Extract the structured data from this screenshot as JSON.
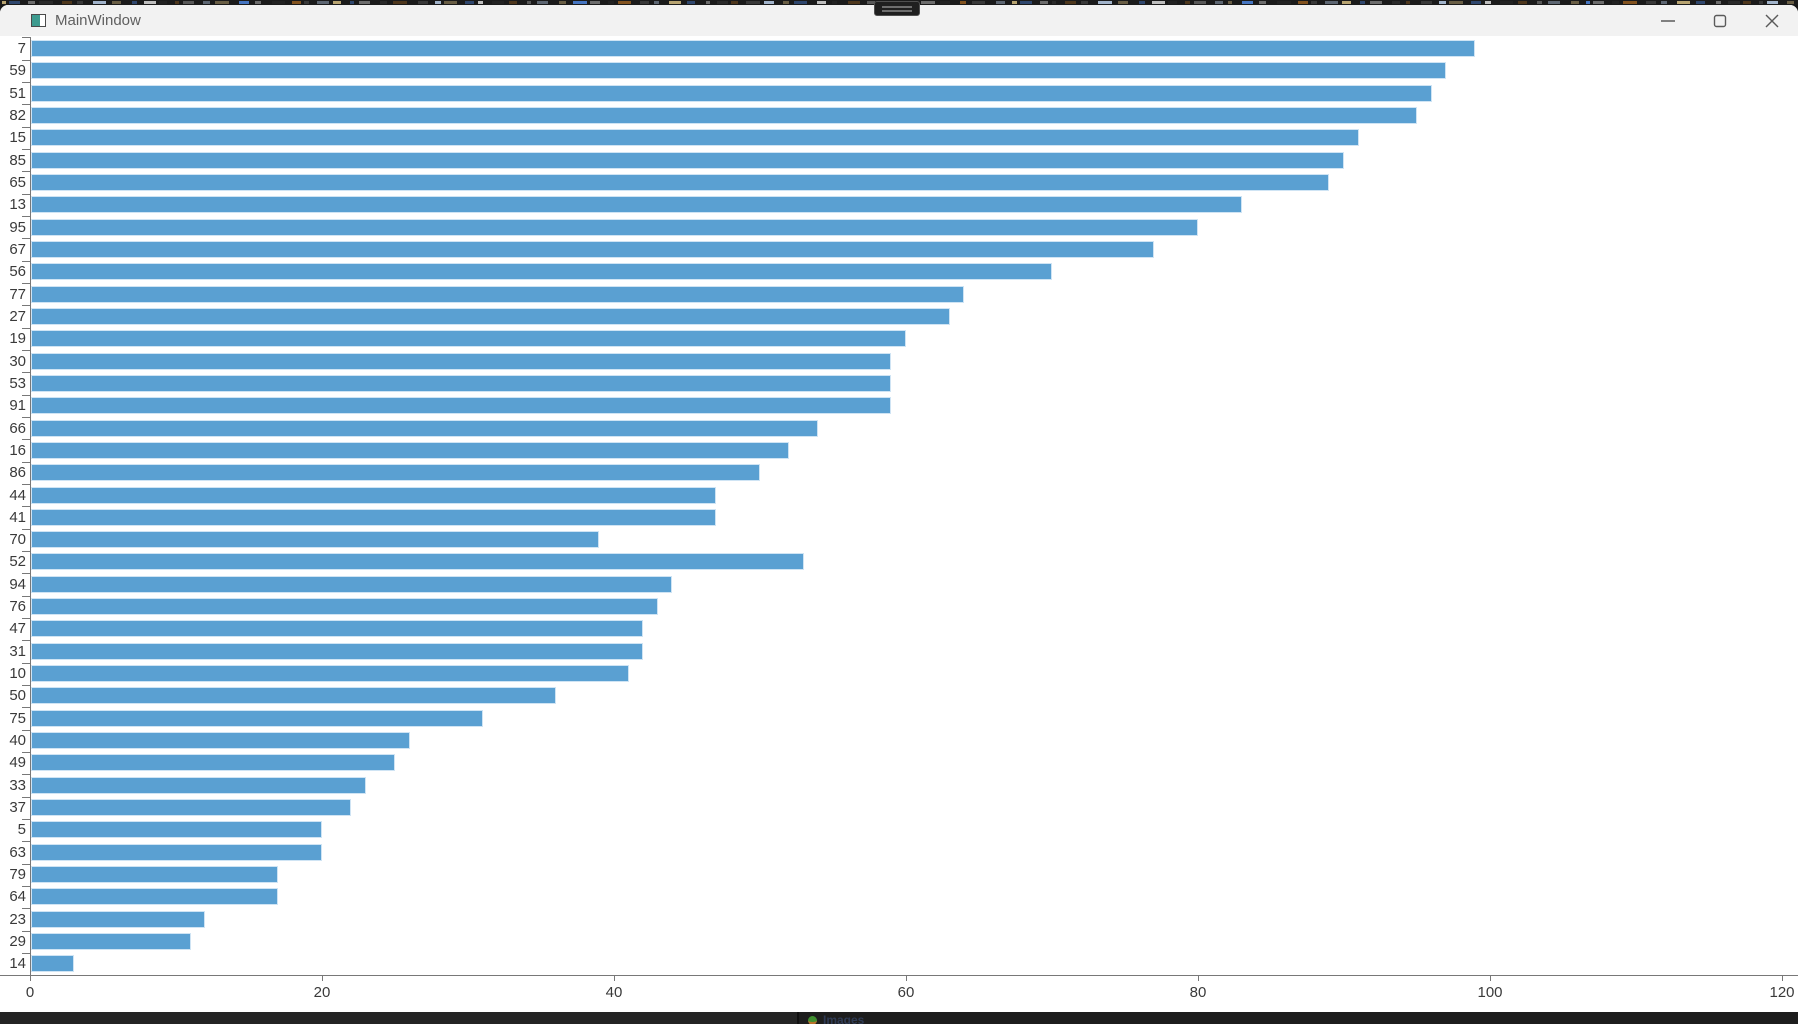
{
  "window": {
    "title": "MainWindow",
    "controls": {
      "minimize_label": "minimize",
      "maximize_label": "maximize",
      "close_label": "close"
    }
  },
  "chart_data": {
    "type": "bar",
    "orientation": "horizontal",
    "title": "",
    "xlabel": "",
    "ylabel": "",
    "categories": [
      "7",
      "59",
      "51",
      "82",
      "15",
      "85",
      "65",
      "13",
      "95",
      "67",
      "56",
      "77",
      "27",
      "19",
      "30",
      "53",
      "91",
      "66",
      "16",
      "86",
      "44",
      "41",
      "70",
      "52",
      "94",
      "76",
      "47",
      "31",
      "10",
      "50",
      "75",
      "40",
      "49",
      "33",
      "37",
      "5",
      "63",
      "79",
      "64",
      "23",
      "29",
      "14"
    ],
    "values": [
      99,
      97,
      96,
      95,
      91,
      90,
      89,
      83,
      80,
      77,
      70,
      64,
      63,
      60,
      59,
      59,
      59,
      54,
      52,
      50,
      47,
      47,
      39,
      53,
      44,
      43,
      42,
      42,
      41,
      36,
      31,
      26,
      25,
      23,
      22,
      20,
      20,
      17,
      17,
      12,
      11,
      3
    ],
    "x_ticks": [
      0,
      20,
      40,
      60,
      80,
      100,
      120
    ],
    "xlim": [
      0,
      120
    ],
    "grid": false,
    "legend": "none",
    "bar_color": "#5aa0d2",
    "bar_edge_color": "#cfe4f4",
    "axis_color": "#787878",
    "label_color": "#3a3a3a"
  },
  "top_edge": {
    "background": "#1b1b1b",
    "speck_colors": [
      "#c9b27a",
      "#4a7fd4",
      "#d0d0d0",
      "#2c2c2c",
      "#8f5a20",
      "#5f5f5f",
      "#b0c4de"
    ]
  },
  "bottom_edge": {
    "tray_label": "Images"
  }
}
